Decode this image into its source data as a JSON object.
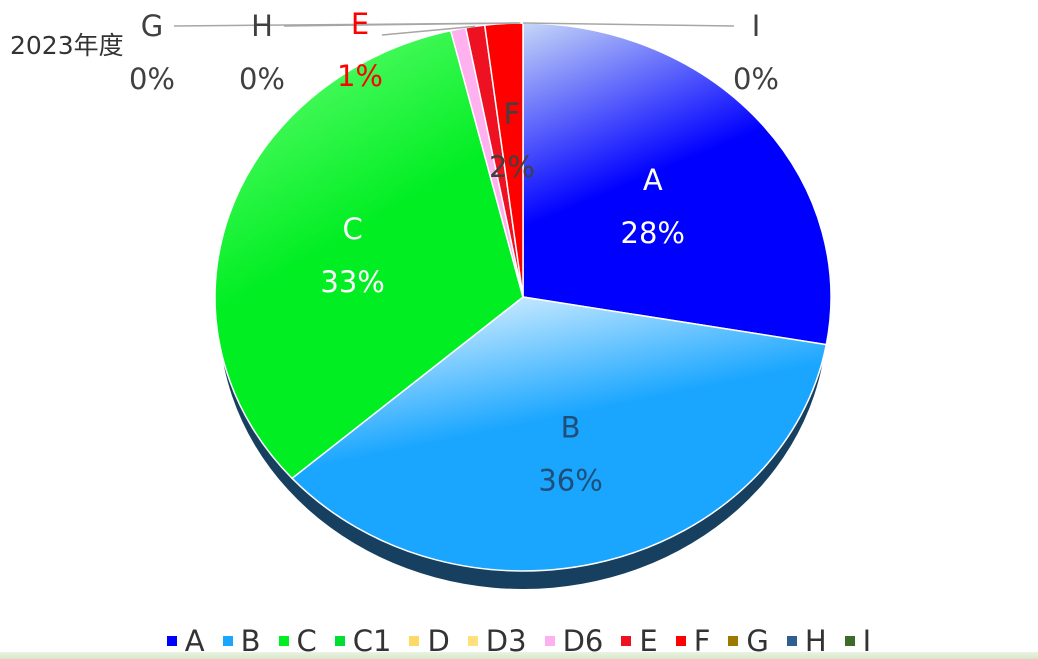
{
  "chart_data": {
    "type": "pie",
    "title": "2023年度",
    "slices": [
      {
        "name": "A",
        "value": 28,
        "label_pct": "28%",
        "color": "#0000ff",
        "gradient_top": "#c6d7f7"
      },
      {
        "name": "B",
        "value": 36,
        "label_pct": "36%",
        "color": "#1aa6ff",
        "gradient_top": "#ffffff"
      },
      {
        "name": "C",
        "value": 33,
        "label_pct": "33%",
        "color": "#00ee22",
        "gradient_top": "#6cff7a"
      },
      {
        "name": "C1",
        "value": 0,
        "color": "#00dd33"
      },
      {
        "name": "D",
        "value": 0,
        "color": "#ffd966"
      },
      {
        "name": "D3",
        "value": 0,
        "color": "#ffe07a"
      },
      {
        "name": "D6",
        "value": 0.8,
        "color": "#ffb0ee"
      },
      {
        "name": "E",
        "value": 1,
        "label_pct": "1%",
        "color": "#ee1122"
      },
      {
        "name": "F",
        "value": 2,
        "label_pct": "2%",
        "color": "#ff0000"
      },
      {
        "name": "G",
        "value": 0,
        "label_pct": "0%",
        "color": "#9c7a00"
      },
      {
        "name": "H",
        "value": 0,
        "label_pct": "0%",
        "color": "#2f5f8f"
      },
      {
        "name": "I",
        "value": 0,
        "label_pct": "0%",
        "color": "#3d6b2a"
      }
    ],
    "legend": [
      "A",
      "B",
      "C",
      "C1",
      "D",
      "D3",
      "D6",
      "E",
      "F",
      "G",
      "H",
      "I"
    ],
    "legend_position": "bottom",
    "label_colors": {
      "A": "#ffffff",
      "B": "#1f4e79",
      "C": "#ffffff",
      "E": "#ff0000",
      "F": "#404040",
      "G": "#404040",
      "H": "#404040",
      "I": "#404040"
    },
    "shadow_color": "#174060"
  }
}
